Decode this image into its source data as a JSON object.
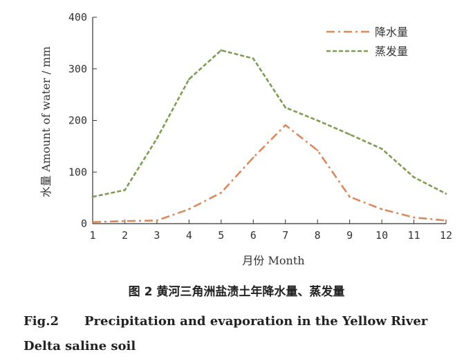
{
  "chart_data": {
    "type": "line",
    "categories": [
      "1",
      "2",
      "3",
      "4",
      "5",
      "6",
      "7",
      "8",
      "9",
      "10",
      "11",
      "12"
    ],
    "series": [
      {
        "name": "降水量",
        "values": [
          3,
          5,
          6,
          28,
          60,
          128,
          191,
          142,
          52,
          28,
          12,
          6
        ],
        "color": "#d9895b",
        "dash": "dashdot"
      },
      {
        "name": "蒸发量",
        "values": [
          52,
          65,
          165,
          280,
          336,
          320,
          225,
          200,
          173,
          145,
          90,
          58
        ],
        "color": "#7e9b52",
        "dash": "dashed"
      }
    ],
    "xlabel": "月份 Month",
    "ylabel": "水量 Amount of water / mm",
    "ylim": [
      0,
      400
    ],
    "yticks": [
      0,
      100,
      200,
      300,
      400
    ],
    "grid": false,
    "legend": "top-right"
  },
  "caption": {
    "chinese": "图 2   黄河三角洲盐渍土年降水量、蒸发量",
    "english_label": "Fig.2",
    "english_text": "Precipitation and evaporation in the Yellow River Delta saline soil"
  }
}
